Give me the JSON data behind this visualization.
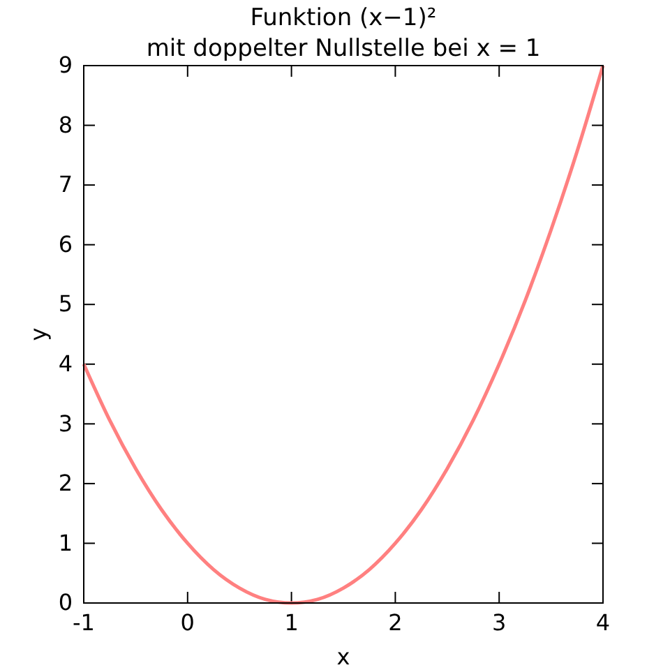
{
  "chart_data": {
    "type": "line",
    "title": "Funktion (x−1)²",
    "subtitle": "mit doppelter Nullstelle bei x = 1",
    "xlabel": "x",
    "ylabel": "y",
    "x": [
      -1,
      -0.75,
      -0.5,
      -0.25,
      0,
      0.25,
      0.5,
      0.75,
      1,
      1.25,
      1.5,
      1.75,
      2,
      2.25,
      2.5,
      2.75,
      3,
      3.25,
      3.5,
      3.75,
      4
    ],
    "series": [
      {
        "color": "#ff8080",
        "values": [
          4,
          3.06,
          2.25,
          1.56,
          1,
          0.56,
          0.25,
          0.06,
          0,
          0.06,
          0.25,
          0.56,
          1,
          1.56,
          2.25,
          3.06,
          4,
          5.06,
          6.25,
          7.56,
          9
        ]
      }
    ],
    "xlim": [
      -1,
      4
    ],
    "ylim": [
      0,
      9
    ],
    "xticks": [
      -1,
      0,
      1,
      2,
      3,
      4
    ],
    "yticks": [
      0,
      1,
      2,
      3,
      4,
      5,
      6,
      7,
      8,
      9
    ],
    "grid": false,
    "marker": "none",
    "line_style": "solid"
  }
}
